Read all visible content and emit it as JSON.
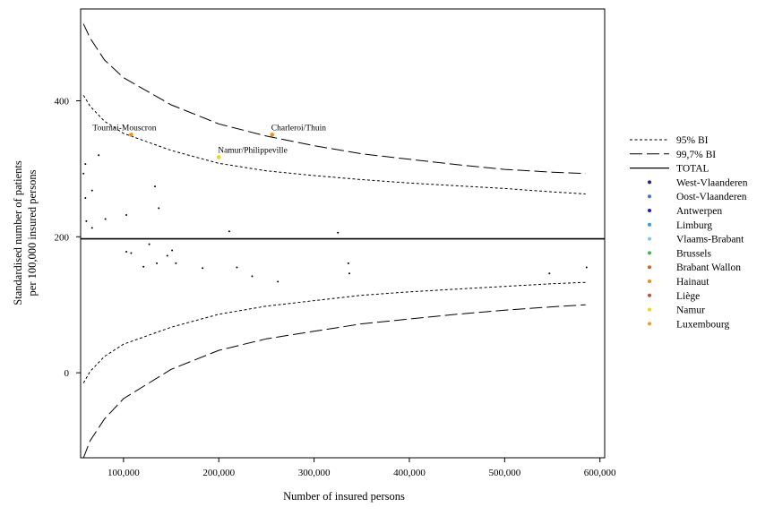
{
  "chart_data": {
    "type": "scatter",
    "xlabel": "Number of insured persons",
    "ylabel_line1": "Standardised number of patients",
    "ylabel_line2": "per 100,000 insured persons",
    "xlim": [
      55000,
      605000
    ],
    "ylim": [
      -125,
      535
    ],
    "x_ticks": [
      100000,
      200000,
      300000,
      400000,
      500000,
      600000
    ],
    "x_tick_labels": [
      "100,000",
      "200,000",
      "300,000",
      "400,000",
      "500,000",
      "600,000"
    ],
    "y_ticks": [
      0,
      200,
      400
    ],
    "y_tick_labels": [
      "0",
      "200",
      "400"
    ],
    "grid": false,
    "legend_position": "right",
    "total": 197,
    "lines": [
      {
        "name": "95% BI",
        "style": "dotted",
        "upper": [
          [
            58000,
            408
          ],
          [
            65000,
            392
          ],
          [
            80000,
            370
          ],
          [
            100000,
            352
          ],
          [
            150000,
            327
          ],
          [
            200000,
            308
          ],
          [
            250000,
            297
          ],
          [
            300000,
            290
          ],
          [
            350000,
            284
          ],
          [
            400000,
            279
          ],
          [
            450000,
            275
          ],
          [
            500000,
            271
          ],
          [
            550000,
            266
          ],
          [
            585000,
            263
          ]
        ],
        "lower": [
          [
            58000,
            -15
          ],
          [
            65000,
            2
          ],
          [
            80000,
            24
          ],
          [
            100000,
            42
          ],
          [
            150000,
            67
          ],
          [
            200000,
            86
          ],
          [
            250000,
            98
          ],
          [
            300000,
            106
          ],
          [
            350000,
            114
          ],
          [
            400000,
            119
          ],
          [
            450000,
            123
          ],
          [
            500000,
            127
          ],
          [
            550000,
            131
          ],
          [
            585000,
            133
          ]
        ]
      },
      {
        "name": "99,7% BI",
        "style": "dashed",
        "upper": [
          [
            58000,
            513
          ],
          [
            65000,
            492
          ],
          [
            80000,
            460
          ],
          [
            100000,
            434
          ],
          [
            150000,
            394
          ],
          [
            200000,
            366
          ],
          [
            250000,
            348
          ],
          [
            300000,
            334
          ],
          [
            350000,
            322
          ],
          [
            400000,
            314
          ],
          [
            450000,
            306
          ],
          [
            500000,
            299
          ],
          [
            550000,
            295
          ],
          [
            585000,
            293
          ]
        ],
        "lower": [
          [
            58000,
            -125
          ],
          [
            65000,
            -100
          ],
          [
            80000,
            -68
          ],
          [
            100000,
            -38
          ],
          [
            150000,
            5
          ],
          [
            200000,
            33
          ],
          [
            250000,
            50
          ],
          [
            300000,
            61
          ],
          [
            350000,
            72
          ],
          [
            400000,
            79
          ],
          [
            450000,
            86
          ],
          [
            500000,
            92
          ],
          [
            550000,
            97
          ],
          [
            585000,
            100
          ]
        ]
      }
    ],
    "points": [
      {
        "x": 58000,
        "y": 293,
        "region": ""
      },
      {
        "x": 60000,
        "y": 307,
        "region": ""
      },
      {
        "x": 60000,
        "y": 257,
        "region": ""
      },
      {
        "x": 61000,
        "y": 223,
        "region": ""
      },
      {
        "x": 67000,
        "y": 268,
        "region": ""
      },
      {
        "x": 67000,
        "y": 213,
        "region": ""
      },
      {
        "x": 74000,
        "y": 320,
        "region": ""
      },
      {
        "x": 81000,
        "y": 226,
        "region": ""
      },
      {
        "x": 103000,
        "y": 232,
        "region": ""
      },
      {
        "x": 103000,
        "y": 178,
        "region": ""
      },
      {
        "x": 108000,
        "y": 176,
        "region": ""
      },
      {
        "x": 121000,
        "y": 156,
        "region": ""
      },
      {
        "x": 127000,
        "y": 189,
        "region": ""
      },
      {
        "x": 133000,
        "y": 274,
        "region": ""
      },
      {
        "x": 135000,
        "y": 161,
        "region": ""
      },
      {
        "x": 137000,
        "y": 242,
        "region": ""
      },
      {
        "x": 146000,
        "y": 172,
        "region": ""
      },
      {
        "x": 151000,
        "y": 180,
        "region": ""
      },
      {
        "x": 155000,
        "y": 161,
        "region": ""
      },
      {
        "x": 183000,
        "y": 154,
        "region": ""
      },
      {
        "x": 211000,
        "y": 208,
        "region": ""
      },
      {
        "x": 219000,
        "y": 155,
        "region": ""
      },
      {
        "x": 235000,
        "y": 142,
        "region": ""
      },
      {
        "x": 262000,
        "y": 134,
        "region": ""
      },
      {
        "x": 325000,
        "y": 206,
        "region": ""
      },
      {
        "x": 336000,
        "y": 161,
        "region": ""
      },
      {
        "x": 337000,
        "y": 146,
        "region": ""
      },
      {
        "x": 547000,
        "y": 146,
        "region": ""
      },
      {
        "x": 586000,
        "y": 155,
        "region": ""
      },
      {
        "x": 108000,
        "y": 350,
        "region": "Hainaut",
        "label": "Tournai-Mouscron"
      },
      {
        "x": 256000,
        "y": 350,
        "region": "Hainaut",
        "label": "Charleroi/Thuin"
      },
      {
        "x": 200000,
        "y": 317,
        "region": "Namur",
        "label": "Namur/Philippeville"
      }
    ],
    "legend": [
      {
        "label": "95% BI",
        "kind": "line",
        "style": "dotted"
      },
      {
        "label": "99,7% BI",
        "kind": "line",
        "style": "dashed"
      },
      {
        "label": "TOTAL",
        "kind": "line",
        "style": "solid"
      },
      {
        "label": "West-Vlaanderen",
        "kind": "marker",
        "color": "#1f1f8f"
      },
      {
        "label": "Oost-Vlaanderen",
        "kind": "marker",
        "color": "#3f6fd6"
      },
      {
        "label": "Antwerpen",
        "kind": "marker",
        "color": "#1a1ad6"
      },
      {
        "label": "Limburg",
        "kind": "marker",
        "color": "#2f9ee0"
      },
      {
        "label": "Vlaams-Brabant",
        "kind": "marker",
        "color": "#7fcbe6"
      },
      {
        "label": "Brussels",
        "kind": "marker",
        "color": "#3cb94a"
      },
      {
        "label": "Brabant Wallon",
        "kind": "marker",
        "color": "#d4602a"
      },
      {
        "label": "Hainaut",
        "kind": "marker",
        "color": "#f28a1e"
      },
      {
        "label": "Liège",
        "kind": "marker",
        "color": "#c0503a"
      },
      {
        "label": "Namur",
        "kind": "marker",
        "color": "#f3d21a"
      },
      {
        "label": "Luxembourg",
        "kind": "marker",
        "color": "#e9a020"
      }
    ]
  }
}
